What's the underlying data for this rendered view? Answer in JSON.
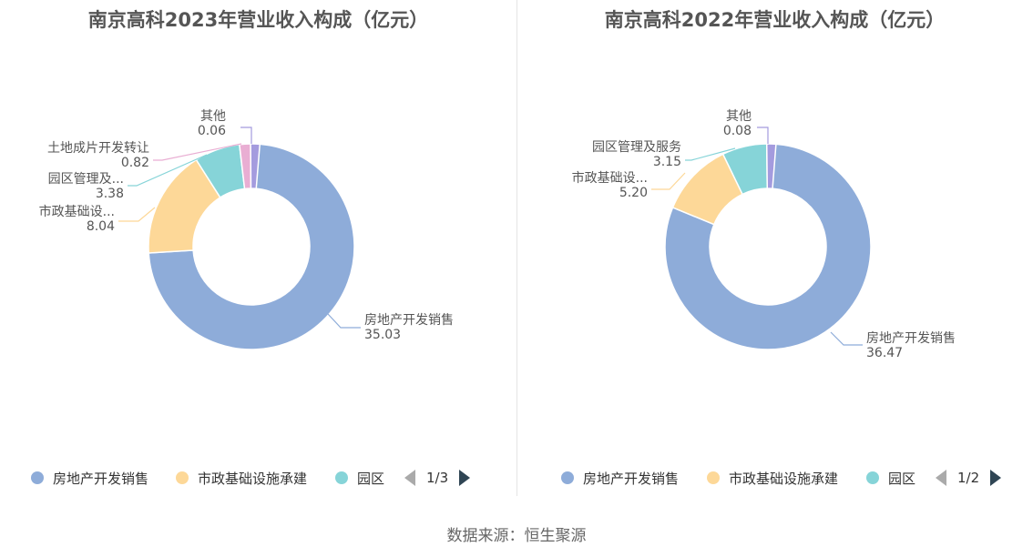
{
  "source_text": "数据来源：恒生聚源",
  "chart_data": [
    {
      "type": "pie",
      "title": "南京高科2023年营业收入构成（亿元）",
      "slices": [
        {
          "name": "房地产开发销售",
          "label": "房地产开发销售",
          "value": 35.03,
          "value_text": "35.03",
          "color": "#8eacd9"
        },
        {
          "name": "市政基础设施承建",
          "label": "市政基础设...",
          "value": 8.04,
          "value_text": "8.04",
          "color": "#fdd898"
        },
        {
          "name": "园区管理及服务",
          "label": "园区管理及...",
          "value": 3.38,
          "value_text": "3.38",
          "color": "#86d4d8"
        },
        {
          "name": "土地成片开发转让",
          "label": "土地成片开发转让",
          "value": 0.82,
          "value_text": "0.82",
          "color": "#e9aed3"
        },
        {
          "name": "其他",
          "label": "其他",
          "value": 0.06,
          "value_text": "0.06",
          "color": "#a49bde"
        }
      ],
      "legend": {
        "items": [
          "房地产开发销售",
          "市政基础设施承建",
          "园区"
        ],
        "page": "1/3"
      }
    },
    {
      "type": "pie",
      "title": "南京高科2022年营业收入构成（亿元）",
      "slices": [
        {
          "name": "房地产开发销售",
          "label": "房地产开发销售",
          "value": 36.47,
          "value_text": "36.47",
          "color": "#8eacd9"
        },
        {
          "name": "市政基础设施承建",
          "label": "市政基础设...",
          "value": 5.2,
          "value_text": "5.20",
          "color": "#fdd898"
        },
        {
          "name": "园区管理及服务",
          "label": "园区管理及服务",
          "value": 3.15,
          "value_text": "3.15",
          "color": "#86d4d8"
        },
        {
          "name": "其他",
          "label": "其他",
          "value": 0.08,
          "value_text": "0.08",
          "color": "#a49bde"
        }
      ],
      "legend": {
        "items": [
          "房地产开发销售",
          "市政基础设施承建",
          "园区"
        ],
        "page": "1/2"
      }
    }
  ]
}
